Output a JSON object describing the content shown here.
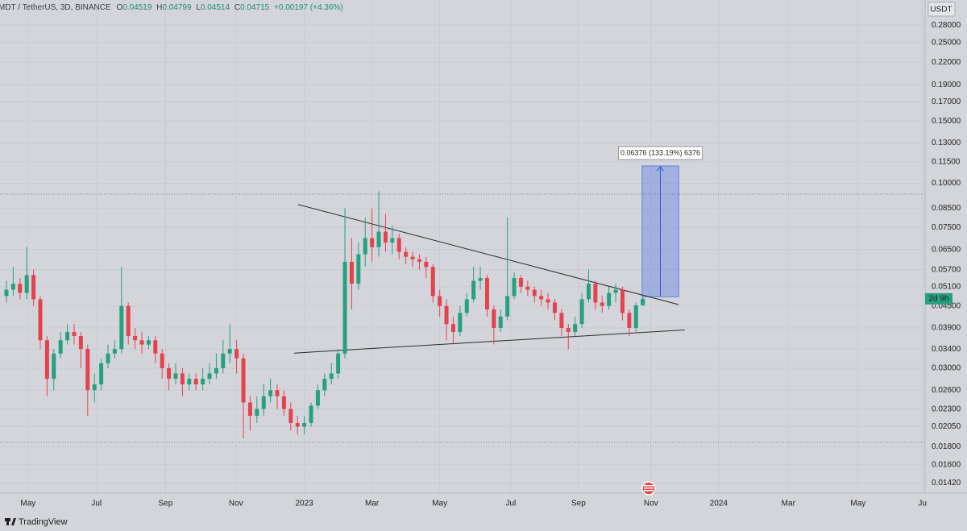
{
  "chart_data": {
    "type": "candlestick",
    "title": "MDT / TetherUS, 3D, BINANCE",
    "ohlc_header": [
      {
        "label": "O",
        "value": "0.04519"
      },
      {
        "label": "H",
        "value": "0.04799"
      },
      {
        "label": "L",
        "value": "0.04514"
      },
      {
        "label": "C",
        "value": "0.04715"
      }
    ],
    "change": "+0.00197 (+4.36%)",
    "currency": "USDT",
    "countdown": "2d 9h",
    "brand": "TradingView",
    "log_scale": true,
    "grid": true,
    "up_color": "#26a07f",
    "down_color": "#e5424d",
    "open": [
      0.048,
      0.05,
      0.052,
      0.049,
      0.055,
      0.047,
      0.036,
      0.028,
      0.033,
      0.036,
      0.038,
      0.037,
      0.034,
      0.026,
      0.027,
      0.031,
      0.033,
      0.034,
      0.045,
      0.037,
      0.036,
      0.035,
      0.036,
      0.033,
      0.03,
      0.028,
      0.029,
      0.027,
      0.028,
      0.027,
      0.028,
      0.029,
      0.03,
      0.033,
      0.034,
      0.032,
      0.024,
      0.022,
      0.023,
      0.025,
      0.026,
      0.025,
      0.023,
      0.021,
      0.0205,
      0.021,
      0.0235,
      0.026,
      0.028,
      0.029,
      0.033,
      0.06,
      0.052,
      0.063,
      0.07,
      0.066,
      0.073,
      0.068,
      0.07,
      0.064,
      0.062,
      0.061,
      0.06,
      0.058,
      0.048,
      0.045,
      0.04,
      0.038,
      0.043,
      0.047,
      0.053,
      0.054,
      0.044,
      0.039,
      0.042,
      0.048,
      0.054,
      0.051,
      0.05,
      0.048,
      0.047,
      0.046,
      0.043,
      0.039,
      0.038,
      0.04,
      0.047,
      0.052,
      0.046,
      0.045,
      0.049,
      0.05,
      0.043,
      0.039,
      0.04519
    ],
    "high": [
      0.053,
      0.058,
      0.054,
      0.066,
      0.057,
      0.048,
      0.037,
      0.034,
      0.038,
      0.04,
      0.04,
      0.038,
      0.035,
      0.029,
      0.032,
      0.035,
      0.036,
      0.058,
      0.046,
      0.039,
      0.038,
      0.037,
      0.037,
      0.034,
      0.031,
      0.031,
      0.03,
      0.029,
      0.029,
      0.03,
      0.031,
      0.033,
      0.036,
      0.04,
      0.036,
      0.033,
      0.025,
      0.025,
      0.027,
      0.028,
      0.027,
      0.026,
      0.024,
      0.022,
      0.022,
      0.024,
      0.027,
      0.029,
      0.031,
      0.034,
      0.085,
      0.07,
      0.068,
      0.08,
      0.085,
      0.095,
      0.082,
      0.076,
      0.072,
      0.066,
      0.064,
      0.063,
      0.062,
      0.059,
      0.05,
      0.047,
      0.042,
      0.045,
      0.049,
      0.058,
      0.058,
      0.055,
      0.045,
      0.044,
      0.08,
      0.056,
      0.055,
      0.053,
      0.051,
      0.05,
      0.049,
      0.047,
      0.044,
      0.04,
      0.042,
      0.049,
      0.057,
      0.053,
      0.048,
      0.051,
      0.052,
      0.051,
      0.044,
      0.046,
      0.04799
    ],
    "low": [
      0.046,
      0.048,
      0.047,
      0.047,
      0.045,
      0.034,
      0.025,
      0.026,
      0.032,
      0.035,
      0.035,
      0.03,
      0.022,
      0.024,
      0.026,
      0.03,
      0.032,
      0.033,
      0.035,
      0.034,
      0.033,
      0.034,
      0.031,
      0.028,
      0.026,
      0.027,
      0.025,
      0.026,
      0.026,
      0.026,
      0.027,
      0.028,
      0.029,
      0.031,
      0.029,
      0.019,
      0.02,
      0.021,
      0.022,
      0.024,
      0.023,
      0.022,
      0.02,
      0.0195,
      0.0195,
      0.0205,
      0.023,
      0.025,
      0.027,
      0.028,
      0.032,
      0.044,
      0.05,
      0.058,
      0.06,
      0.062,
      0.064,
      0.063,
      0.061,
      0.059,
      0.058,
      0.057,
      0.054,
      0.046,
      0.042,
      0.036,
      0.035,
      0.037,
      0.042,
      0.046,
      0.05,
      0.042,
      0.035,
      0.038,
      0.041,
      0.047,
      0.049,
      0.048,
      0.046,
      0.045,
      0.044,
      0.041,
      0.037,
      0.034,
      0.037,
      0.039,
      0.046,
      0.044,
      0.043,
      0.044,
      0.046,
      0.041,
      0.037,
      0.038,
      0.04514
    ],
    "close": [
      0.05,
      0.052,
      0.049,
      0.055,
      0.047,
      0.036,
      0.028,
      0.033,
      0.036,
      0.038,
      0.037,
      0.034,
      0.026,
      0.027,
      0.031,
      0.033,
      0.034,
      0.045,
      0.037,
      0.036,
      0.035,
      0.036,
      0.033,
      0.03,
      0.028,
      0.029,
      0.027,
      0.028,
      0.027,
      0.028,
      0.029,
      0.03,
      0.033,
      0.034,
      0.032,
      0.024,
      0.022,
      0.023,
      0.025,
      0.026,
      0.025,
      0.023,
      0.021,
      0.0205,
      0.021,
      0.0235,
      0.026,
      0.028,
      0.029,
      0.033,
      0.06,
      0.052,
      0.063,
      0.07,
      0.066,
      0.073,
      0.068,
      0.07,
      0.064,
      0.062,
      0.061,
      0.06,
      0.058,
      0.048,
      0.045,
      0.04,
      0.038,
      0.043,
      0.047,
      0.053,
      0.054,
      0.044,
      0.039,
      0.042,
      0.048,
      0.054,
      0.051,
      0.05,
      0.048,
      0.047,
      0.046,
      0.043,
      0.039,
      0.038,
      0.04,
      0.047,
      0.052,
      0.046,
      0.045,
      0.049,
      0.05,
      0.043,
      0.039,
      0.04519,
      0.04715
    ],
    "xlim": [
      -0.95,
      135.7
    ],
    "ylim": [
      0.0133,
      0.33
    ],
    "xticks": [
      {
        "value": 3.2,
        "label": "May"
      },
      {
        "value": 13.3,
        "label": "Jul"
      },
      {
        "value": 23.5,
        "label": "Sep"
      },
      {
        "value": 33.9,
        "label": "Nov"
      },
      {
        "value": 44,
        "label": "2023"
      },
      {
        "value": 54,
        "label": "Mar"
      },
      {
        "value": 64,
        "label": "May"
      },
      {
        "value": 74.5,
        "label": "Jul"
      },
      {
        "value": 84.5,
        "label": "Sep"
      },
      {
        "value": 95.2,
        "label": "Nov"
      },
      {
        "value": 105.2,
        "label": "2024"
      },
      {
        "value": 115.5,
        "label": "Mar"
      },
      {
        "value": 125.8,
        "label": "May"
      },
      {
        "value": 135.3,
        "label": "Ju"
      }
    ],
    "yticks": [
      {
        "value": 0.28,
        "label": "0.28000"
      },
      {
        "value": 0.25,
        "label": "0.25000"
      },
      {
        "value": 0.22,
        "label": "0.22000"
      },
      {
        "value": 0.19,
        "label": "0.19000"
      },
      {
        "value": 0.17,
        "label": "0.17000"
      },
      {
        "value": 0.15,
        "label": "0.15000"
      },
      {
        "value": 0.13,
        "label": "0.13000"
      },
      {
        "value": 0.115,
        "label": "0.11500"
      },
      {
        "value": 0.1,
        "label": "0.10000"
      },
      {
        "value": 0.085,
        "label": "0.08500"
      },
      {
        "value": 0.075,
        "label": "0.07500"
      },
      {
        "value": 0.065,
        "label": "0.06500"
      },
      {
        "value": 0.057,
        "label": "0.05700"
      },
      {
        "value": 0.051,
        "label": "0.05100"
      },
      {
        "value": 0.045,
        "label": "0.04500"
      },
      {
        "value": 0.039,
        "label": "0.03900"
      },
      {
        "value": 0.034,
        "label": "0.03400"
      },
      {
        "value": 0.03,
        "label": "0.03000"
      },
      {
        "value": 0.026,
        "label": "0.02600"
      },
      {
        "value": 0.023,
        "label": "0.02300"
      },
      {
        "value": 0.0205,
        "label": "0.02050"
      },
      {
        "value": 0.018,
        "label": "0.01800"
      },
      {
        "value": 0.016,
        "label": "0.01600"
      },
      {
        "value": 0.0142,
        "label": "0.01420"
      }
    ],
    "reference_lines": [
      0.0932,
      0.0185
    ],
    "trendlines": [
      {
        "x": [
          43.1,
          99.3
        ],
        "y": [
          0.0871,
          0.0454
        ]
      },
      {
        "x": [
          42.5,
          100.2
        ],
        "y": [
          0.0331,
          0.0385
        ]
      }
    ],
    "projection": {
      "x": [
        93.9,
        99.3
      ],
      "y": [
        0.0478,
        0.112
      ],
      "label": "0.06376 (133.19%) 6376"
    }
  }
}
